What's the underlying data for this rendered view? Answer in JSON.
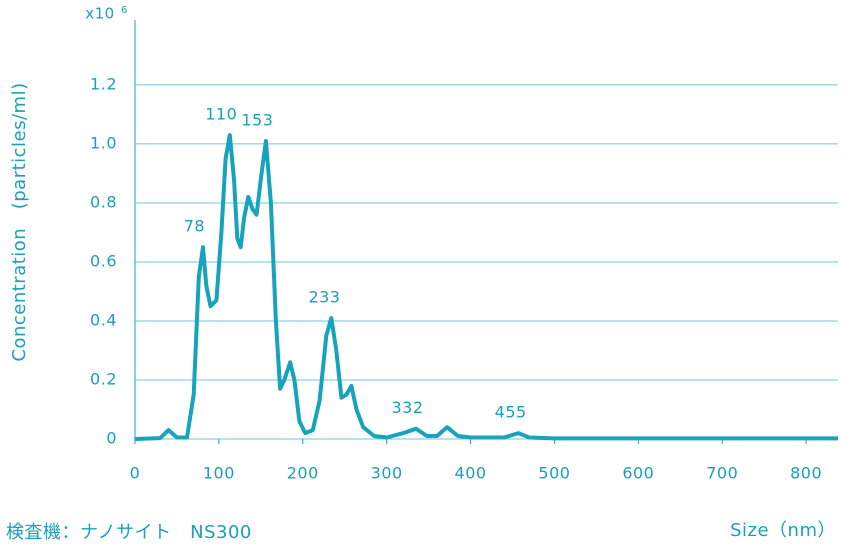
{
  "chart_data": {
    "type": "line",
    "y_label": "Concentration　(particles/ml)",
    "x_label": "Size（nm）",
    "multiplier": "x10",
    "exponent": 6,
    "footnote": "検査機：ナノサイト　NS300",
    "color": "#17a3bd",
    "x": [
      0,
      30,
      40,
      50,
      62,
      70,
      76,
      81,
      85,
      90,
      97,
      103,
      108,
      113,
      118,
      122,
      126,
      130,
      135,
      140,
      145,
      150,
      156,
      162,
      168,
      173,
      178,
      185,
      190,
      196,
      203,
      212,
      220,
      228,
      234,
      240,
      246,
      252,
      258,
      264,
      272,
      285,
      300,
      320,
      335,
      348,
      360,
      372,
      385,
      400,
      440,
      457,
      470,
      500,
      838
    ],
    "values": [
      0,
      0.003,
      0.03,
      0.005,
      0.005,
      0.15,
      0.55,
      0.65,
      0.52,
      0.45,
      0.47,
      0.7,
      0.95,
      1.03,
      0.88,
      0.68,
      0.65,
      0.75,
      0.82,
      0.78,
      0.76,
      0.88,
      1.01,
      0.8,
      0.4,
      0.17,
      0.2,
      0.26,
      0.2,
      0.06,
      0.02,
      0.03,
      0.13,
      0.35,
      0.41,
      0.3,
      0.14,
      0.15,
      0.18,
      0.1,
      0.04,
      0.01,
      0.005,
      0.02,
      0.035,
      0.01,
      0.01,
      0.04,
      0.01,
      0.005,
      0.005,
      0.02,
      0.005,
      0.002,
      0.002
    ],
    "annotations": [
      78,
      110,
      153,
      233,
      332,
      455
    ],
    "xlim": [
      0,
      838
    ],
    "ylim": [
      0,
      1.42
    ],
    "xticks": [
      0,
      100,
      200,
      300,
      400,
      500,
      600,
      700,
      800
    ],
    "yticks": [
      0,
      0.2,
      0.4,
      0.6,
      0.8,
      {
        "value": 1,
        "label": "1.0"
      },
      1.2
    ],
    "grid": true
  }
}
